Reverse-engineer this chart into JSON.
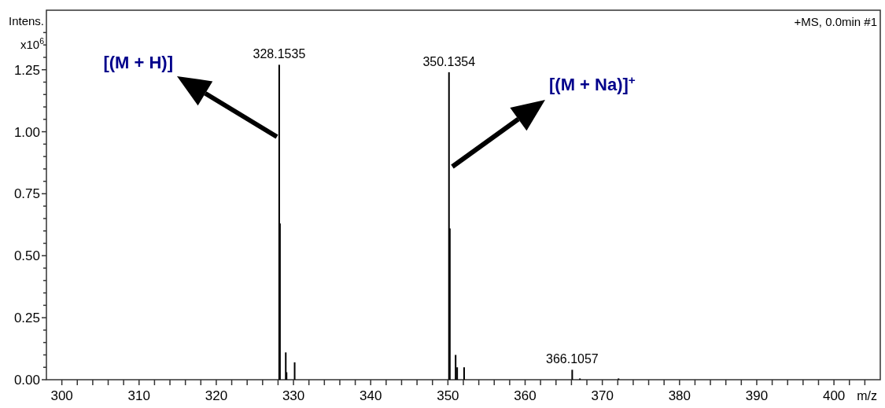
{
  "chart_data": {
    "type": "bar",
    "xlabel": "m/z",
    "ylabel": "Intens. x10$^{6}$",
    "x": [
      328.15,
      328.25,
      329.0,
      329.1,
      330.15,
      350.14,
      350.25,
      351.0,
      351.2,
      352.1,
      366.1,
      367.1,
      372.1
    ],
    "series": [
      {
        "color": "#000000",
        "values": [
          1.27,
          0.63,
          0.11,
          0.03,
          0.07,
          1.24,
          0.61,
          0.1,
          0.05,
          0.05,
          0.04,
          0.005,
          0.005
        ]
      }
    ],
    "xlim": [
      298,
      406
    ],
    "xticks": [
      300,
      {
        "value": 302,
        "label": null
      },
      {
        "value": 304,
        "label": null
      },
      {
        "value": 306,
        "label": null
      },
      {
        "value": 308,
        "label": null
      },
      310,
      {
        "value": 312,
        "label": null
      },
      {
        "value": 314,
        "label": null
      },
      {
        "value": 316,
        "label": null
      },
      {
        "value": 318,
        "label": null
      },
      320,
      {
        "value": 322,
        "label": null
      },
      {
        "value": 324,
        "label": null
      },
      {
        "value": 326,
        "label": null
      },
      {
        "value": 328,
        "label": null
      },
      330,
      {
        "value": 332,
        "label": null
      },
      {
        "value": 334,
        "label": null
      },
      {
        "value": 336,
        "label": null
      },
      {
        "value": 338,
        "label": null
      },
      340,
      {
        "value": 342,
        "label": null
      },
      {
        "value": 344,
        "label": null
      },
      {
        "value": 346,
        "label": null
      },
      {
        "value": 348,
        "label": null
      },
      350,
      {
        "value": 352,
        "label": null
      },
      {
        "value": 354,
        "label": null
      },
      {
        "value": 356,
        "label": null
      },
      {
        "value": 358,
        "label": null
      },
      360,
      {
        "value": 362,
        "label": null
      },
      {
        "value": 364,
        "label": null
      },
      {
        "value": 366,
        "label": null
      },
      {
        "value": 368,
        "label": null
      },
      370,
      {
        "value": 372,
        "label": null
      },
      {
        "value": 374,
        "label": null
      },
      {
        "value": 376,
        "label": null
      },
      {
        "value": 378,
        "label": null
      },
      380,
      {
        "value": 382,
        "label": null
      },
      {
        "value": 384,
        "label": null
      },
      {
        "value": 386,
        "label": null
      },
      {
        "value": 388,
        "label": null
      },
      390,
      {
        "value": 392,
        "label": null
      },
      {
        "value": 394,
        "label": null
      },
      {
        "value": 396,
        "label": null
      },
      {
        "value": 398,
        "label": null
      },
      400,
      {
        "value": 402,
        "label": null
      },
      {
        "value": 404,
        "label": null
      }
    ],
    "ylim": [
      0,
      1.49
    ],
    "yticks": [
      {
        "value": 0,
        "label": "0.00"
      },
      {
        "value": 0.05,
        "label": null
      },
      {
        "value": 0.1,
        "label": null
      },
      {
        "value": 0.15,
        "label": null
      },
      {
        "value": 0.2,
        "label": null
      },
      0.25,
      {
        "value": 0.3,
        "label": null
      },
      {
        "value": 0.35,
        "label": null
      },
      {
        "value": 0.4,
        "label": null
      },
      {
        "value": 0.45,
        "label": null
      },
      {
        "value": 0.5,
        "label": "0.50"
      },
      {
        "value": 0.55,
        "label": null
      },
      {
        "value": 0.6,
        "label": null
      },
      {
        "value": 0.65,
        "label": null
      },
      {
        "value": 0.7,
        "label": null
      },
      0.75,
      {
        "value": 0.8,
        "label": null
      },
      {
        "value": 0.85,
        "label": null
      },
      {
        "value": 0.9,
        "label": null
      },
      {
        "value": 0.95,
        "label": null
      },
      {
        "value": 1,
        "label": "1.00"
      },
      {
        "value": 1.05,
        "label": null
      },
      {
        "value": 1.1,
        "label": null
      },
      {
        "value": 1.15,
        "label": null
      },
      {
        "value": 1.2,
        "label": null
      },
      1.25,
      {
        "value": 1.3,
        "label": null
      },
      {
        "value": 1.35,
        "label": null
      },
      {
        "value": 1.4,
        "label": null
      }
    ],
    "annotations": [
      "+MS, 0.0min #1",
      {
        "text": "328.1535",
        "x": 328.15,
        "y": 1.27
      },
      {
        "text": "350.1354",
        "x": 350.14,
        "y": 1.24
      },
      {
        "text": "366.1057",
        "x": 366.1,
        "y": 0.04
      },
      "[(M + H)]",
      "[(M + Na)]$^{+}$"
    ],
    "grid": false
  }
}
